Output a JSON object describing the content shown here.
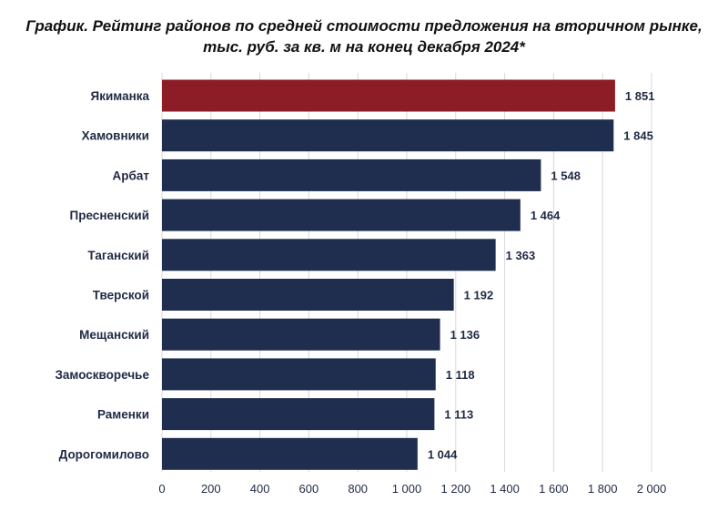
{
  "chart_data": {
    "type": "bar",
    "orientation": "horizontal",
    "title_line1": "График. Рейтинг районов по средней стоимости предложения на вторичном рынке,",
    "title_line2": "тыс. руб. за кв. м на конец декабря 2024*",
    "categories": [
      "Якиманка",
      "Хамовники",
      "Арбат",
      "Пресненский",
      "Таганский",
      "Тверской",
      "Мещанский",
      "Замоскворечье",
      "Раменки",
      "Дорогомилово"
    ],
    "values": [
      1851,
      1845,
      1548,
      1464,
      1363,
      1192,
      1136,
      1118,
      1113,
      1044
    ],
    "value_labels": [
      "1 851",
      "1 845",
      "1 548",
      "1 464",
      "1 363",
      "1 192",
      "1 136",
      "1 118",
      "1 113",
      "1 044"
    ],
    "xlim": [
      0,
      2000
    ],
    "xticks": [
      0,
      200,
      400,
      600,
      800,
      1000,
      1200,
      1400,
      1600,
      1800,
      2000
    ],
    "xtick_labels": [
      "0",
      "200",
      "400",
      "600",
      "800",
      "1 000",
      "1 200",
      "1 400",
      "1 600",
      "1 800",
      "2 000"
    ],
    "grid": "vertical",
    "legend": "none",
    "colors": {
      "highlight": "#8c1c25",
      "bar": "#1f2d4e",
      "grid": "#d9d9d9",
      "text": "#1f2a44"
    },
    "highlight_index": 0
  }
}
